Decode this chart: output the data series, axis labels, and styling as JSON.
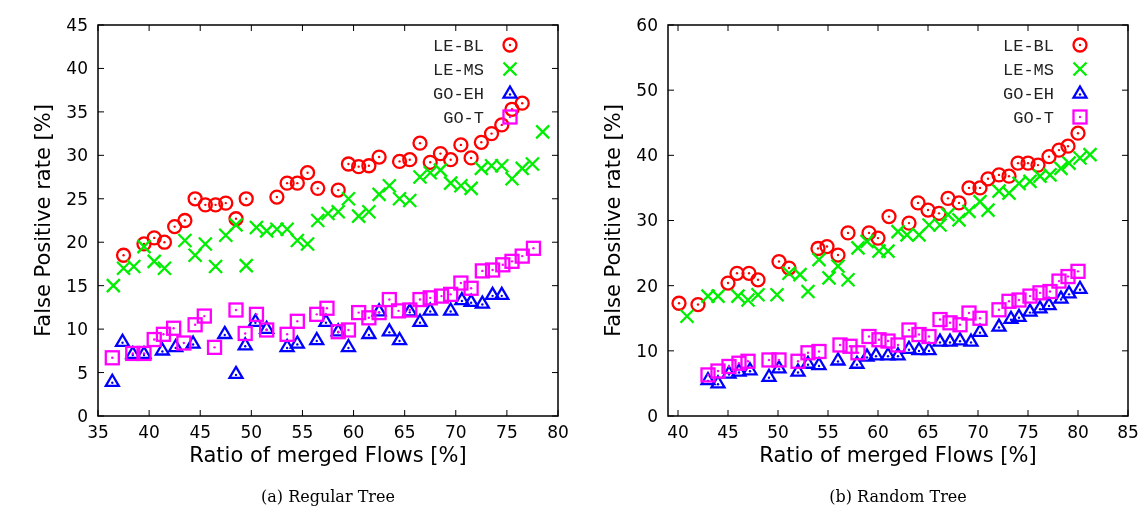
{
  "chart_data": [
    {
      "type": "scatter",
      "title": "(a) Regular Tree",
      "xlabel": "Ratio of merged Flows [%]",
      "ylabel": "False Positive rate [%]",
      "xlim": [
        35,
        80
      ],
      "xticks": [
        35,
        40,
        45,
        50,
        55,
        60,
        65,
        70,
        75,
        80
      ],
      "ylim": [
        0,
        45
      ],
      "yticks": [
        0,
        5,
        10,
        15,
        20,
        25,
        30,
        35,
        40,
        45
      ],
      "legend": "top right",
      "grid": false,
      "series": [
        {
          "name": "LE-BL",
          "color": "#ff0000",
          "marker": "circle",
          "x": [
            37.5,
            39.5,
            40.5,
            41.5,
            42.5,
            43.5,
            44.5,
            45.5,
            46.5,
            47.5,
            48.5,
            49.5,
            52.5,
            53.5,
            54.5,
            55.5,
            56.5,
            58.5,
            59.5,
            60.5,
            61.5,
            62.5,
            64.5,
            65.5,
            66.5,
            67.5,
            68.5,
            69.5,
            70.5,
            71.5,
            72.5,
            73.5,
            74.5,
            75.5,
            76.5
          ],
          "values": [
            18.5,
            19.8,
            20.5,
            20,
            21.8,
            22.5,
            25,
            24.3,
            24.3,
            24.5,
            22.7,
            25,
            25.2,
            26.8,
            26.8,
            28,
            26.2,
            26,
            29,
            28.7,
            28.8,
            29.8,
            29.3,
            29.5,
            31.4,
            29.2,
            30.2,
            29.5,
            31.2,
            29.7,
            31.5,
            32.5,
            33.5,
            35.3,
            36
          ]
        },
        {
          "name": "LE-MS",
          "color": "#00ee00",
          "marker": "cross",
          "x": [
            36.5,
            37.5,
            38.5,
            39.5,
            40.5,
            41.5,
            43.5,
            44.5,
            45.5,
            46.5,
            47.5,
            48.5,
            49.5,
            50.5,
            51.5,
            52.5,
            53.5,
            54.5,
            55.5,
            56.5,
            57.5,
            58.5,
            59.5,
            60.5,
            61.5,
            62.5,
            63.5,
            64.5,
            65.5,
            66.5,
            67.5,
            68.5,
            69.5,
            70.5,
            71.5,
            72.5,
            73.5,
            74.5,
            75.5,
            76.5,
            77.5,
            78.5
          ],
          "values": [
            15,
            17,
            17.2,
            19.5,
            17.8,
            17,
            20.2,
            18.5,
            19.8,
            17.2,
            20.8,
            22,
            17.3,
            21.7,
            21.3,
            21.5,
            21.5,
            20.2,
            19.8,
            22.5,
            23.3,
            23.5,
            25,
            23,
            23.5,
            25.5,
            26.5,
            25,
            24.8,
            27.5,
            28,
            28.3,
            26.8,
            26.5,
            26.2,
            28.5,
            28.8,
            28.8,
            27.3,
            28.5,
            29,
            32.7
          ]
        },
        {
          "name": "GO-EH",
          "color": "#0000ff",
          "marker": "triangle",
          "x": [
            36.4,
            37.4,
            38.4,
            39.5,
            41.3,
            42.6,
            44.3,
            47.4,
            48.5,
            49.4,
            50.4,
            51.5,
            53.5,
            54.5,
            56.4,
            57.3,
            58.5,
            59.5,
            61.5,
            62.5,
            63.5,
            64.5,
            65.5,
            66.5,
            67.5,
            69.5,
            70.6,
            71.5,
            72.6,
            73.6,
            74.5
          ],
          "values": [
            4,
            8.6,
            7.2,
            7.2,
            7.6,
            8,
            8.4,
            9.5,
            4.9,
            8.2,
            10.9,
            10.1,
            8,
            8.4,
            8.8,
            10.9,
            9.8,
            8,
            9.5,
            12.1,
            9.8,
            8.8,
            12.1,
            10.9,
            12.2,
            12.2,
            13.4,
            13.2,
            13,
            14,
            14
          ]
        },
        {
          "name": "GO-T",
          "color": "#ff00ff",
          "marker": "square",
          "x": [
            36.4,
            38.4,
            39.5,
            40.5,
            41.4,
            42.4,
            43.4,
            44.5,
            45.4,
            46.4,
            48.5,
            49.4,
            50.5,
            51.5,
            53.5,
            54.5,
            56.4,
            57.4,
            58.5,
            59.5,
            60.5,
            61.5,
            62.5,
            63.5,
            64.4,
            65.5,
            66.5,
            67.5,
            68.6,
            69.5,
            70.5,
            71.5,
            72.6,
            73.6,
            74.6,
            75.5,
            76.5,
            77.6
          ],
          "values": [
            6.7,
            7.2,
            7.2,
            8.8,
            9.4,
            10.1,
            8.4,
            10.5,
            11.5,
            7.9,
            12.2,
            9.5,
            11.7,
            9.9,
            9.4,
            10.9,
            11.7,
            12.4,
            9.7,
            9.9,
            11.9,
            11.3,
            11.9,
            13.4,
            12.1,
            12.2,
            13.4,
            13.6,
            13.8,
            14,
            15.3,
            14.7,
            16.7,
            16.8,
            17.4,
            17.8,
            18.4,
            19.3
          ]
        }
      ]
    },
    {
      "type": "scatter",
      "title": "(b) Random Tree",
      "xlabel": "Ratio of merged Flows [%]",
      "ylabel": "False Positive rate [%]",
      "xlim": [
        39,
        85
      ],
      "xticks": [
        40,
        45,
        50,
        55,
        60,
        65,
        70,
        75,
        80,
        85
      ],
      "ylim": [
        0,
        60
      ],
      "yticks": [
        0,
        10,
        20,
        30,
        40,
        50,
        60
      ],
      "legend": "top right",
      "grid": false,
      "series": [
        {
          "name": "LE-BL",
          "color": "#ff0000",
          "marker": "circle",
          "x": [
            40.1,
            42,
            45,
            45.9,
            47.1,
            48,
            50.1,
            51.1,
            54,
            54.9,
            56,
            57,
            59.1,
            60,
            61.1,
            63.1,
            64,
            65,
            66.1,
            67,
            68.1,
            69.1,
            70.2,
            71,
            72.1,
            73.1,
            74,
            75,
            76,
            77.1,
            78.1,
            79,
            80
          ],
          "values": [
            17.3,
            17.1,
            20.4,
            21.9,
            21.9,
            20.9,
            23.7,
            22.7,
            25.7,
            26,
            24.7,
            28.1,
            28.1,
            27.3,
            30.6,
            29.6,
            32.7,
            31.6,
            31.1,
            33.4,
            32.7,
            35,
            35,
            36.4,
            37,
            36.8,
            38.8,
            38.8,
            38.5,
            39.8,
            40.8,
            41.4,
            43.4
          ]
        },
        {
          "name": "LE-MS",
          "color": "#00ee00",
          "marker": "cross",
          "x": [
            40.9,
            43,
            44,
            46,
            47,
            48,
            49.9,
            51.1,
            52.2,
            53,
            54.1,
            55.1,
            56,
            57,
            58,
            58.9,
            60.1,
            61,
            62,
            62.9,
            64.1,
            65.1,
            66.2,
            67,
            68.1,
            69.1,
            70.2,
            71,
            72.1,
            73.1,
            74.1,
            75.2,
            76.2,
            77.2,
            78.3,
            79.1,
            80.2,
            81.2
          ],
          "values": [
            15.3,
            18.4,
            18.4,
            18.4,
            17.8,
            18.6,
            18.6,
            21.9,
            21.7,
            19.1,
            24,
            21.2,
            23,
            20.9,
            25.8,
            26.8,
            25.3,
            25.3,
            28.3,
            27.8,
            27.8,
            29.3,
            29.3,
            30.9,
            30.1,
            31.4,
            32.9,
            31.6,
            34.5,
            34.2,
            35.7,
            36,
            36.8,
            37,
            38,
            38.8,
            39.6,
            40.1
          ]
        },
        {
          "name": "GO-EH",
          "color": "#0000ff",
          "marker": "triangle",
          "x": [
            43,
            44,
            45.1,
            46.1,
            47.2,
            49.1,
            50.1,
            52,
            53,
            54.1,
            56,
            57.9,
            58.9,
            59.8,
            61,
            62,
            63.1,
            64.1,
            65.1,
            66.2,
            67.2,
            68.2,
            69.3,
            70.2,
            72.1,
            73.3,
            74.1,
            75.2,
            76.2,
            77.1,
            78.3,
            79.1,
            80.2
          ],
          "values": [
            5.6,
            5.1,
            6.6,
            6.9,
            7.1,
            6.1,
            7.4,
            6.9,
            8.1,
            7.9,
            8.6,
            8.1,
            9.2,
            9.4,
            9.4,
            9.4,
            10.4,
            10.2,
            10.2,
            11.5,
            11.5,
            11.7,
            11.5,
            13,
            13.8,
            15,
            15.3,
            16.1,
            16.6,
            17.1,
            18.1,
            18.9,
            19.6
          ]
        },
        {
          "name": "GO-T",
          "color": "#ff00ff",
          "marker": "square",
          "x": [
            43,
            44,
            45.1,
            46.1,
            47,
            49.1,
            50.1,
            52,
            53,
            54.1,
            56.2,
            57.2,
            58,
            59.1,
            60.1,
            61,
            62,
            63.1,
            64.1,
            65.1,
            66.2,
            67.2,
            68.2,
            69.1,
            70.2,
            72.1,
            73.1,
            74.1,
            75.2,
            76.2,
            77.2,
            78.1,
            79,
            80
          ],
          "values": [
            6.3,
            6.9,
            7.6,
            8.1,
            8.4,
            8.6,
            8.6,
            8.4,
            9.7,
            9.9,
            10.9,
            10.7,
            9.7,
            12.2,
            11.7,
            11.5,
            10.9,
            13.2,
            12.5,
            12.2,
            14.8,
            14.3,
            14,
            15.8,
            15,
            16.3,
            17.6,
            17.8,
            18.4,
            18.9,
            19.1,
            20.7,
            21.4,
            22.2
          ]
        }
      ]
    }
  ]
}
